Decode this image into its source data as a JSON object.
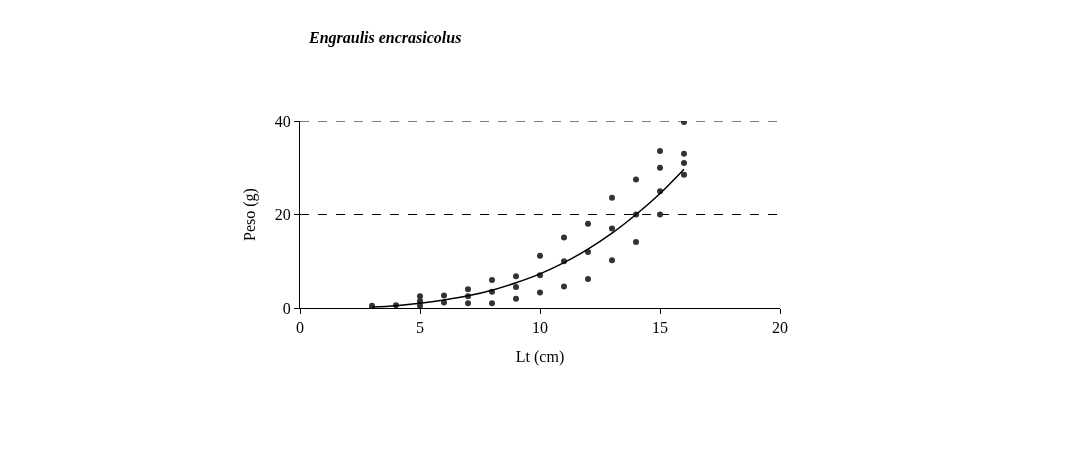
{
  "chart_data": {
    "type": "scatter",
    "title": "Engraulis encrasicolus",
    "xlabel": "Lt (cm)",
    "ylabel": "Peso (g)",
    "xlim": [
      0,
      20
    ],
    "xticks": [
      0,
      5,
      10,
      15,
      20
    ],
    "ylim": [
      0,
      40
    ],
    "yticks": [
      0,
      20,
      40
    ],
    "grid": "y",
    "series": [
      {
        "marker": "circle",
        "color": "#333333",
        "x": [
          3,
          3,
          4,
          5,
          5,
          5,
          6,
          6,
          7,
          7,
          7,
          8,
          8,
          8,
          9,
          9,
          9,
          10,
          10,
          10,
          11,
          11,
          11,
          12,
          12,
          12,
          13,
          13,
          13,
          14,
          14,
          14,
          15,
          15,
          15,
          15,
          16,
          16,
          16,
          16
        ],
        "values": [
          0,
          0.5,
          0.6,
          0.5,
          1.5,
          2.5,
          1.2,
          2.7,
          1,
          2.5,
          4,
          1,
          3.5,
          6,
          2,
          4.5,
          6.8,
          3.3,
          7,
          11.2,
          4.6,
          10,
          15.1,
          6.2,
          12,
          18,
          10.2,
          17,
          23.6,
          14.1,
          20,
          27.5,
          20,
          25,
          30,
          33.6,
          28.5,
          31,
          33,
          39.8
        ]
      },
      {
        "type": "line",
        "color": "#000000",
        "line_style": "solid",
        "x": [
          3,
          4,
          5,
          6,
          7,
          8,
          9,
          10,
          11,
          12,
          13,
          14,
          15,
          16
        ],
        "values": [
          0.2,
          0.5,
          1,
          1.7,
          2.6,
          3.8,
          5.4,
          7.3,
          9.7,
          12.6,
          16,
          20,
          24.5,
          29.7
        ]
      }
    ]
  }
}
